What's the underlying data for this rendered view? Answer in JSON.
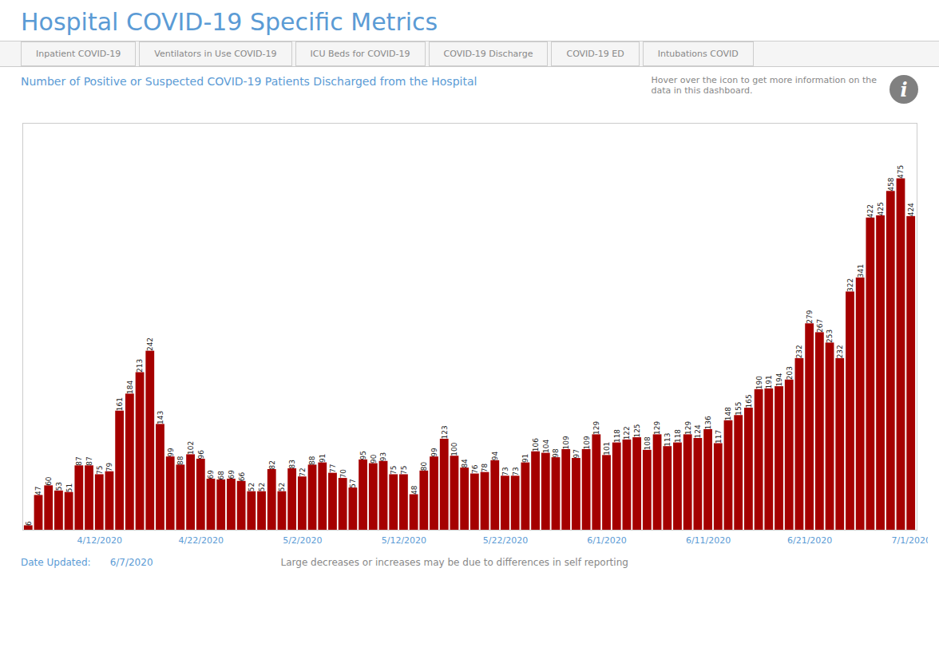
{
  "chart_data": {
    "type": "bar",
    "title": "Hospital COVID-19 Specific Metrics",
    "subtitle": "Number of Positive or Suspected COVID-19 Patients Discharged from the Hospital",
    "annotations": [
      "Inpatient COVID-19",
      "Ventilators in Use COVID-19",
      "ICU Beds for COVID-19",
      "COVID-19 Discharge",
      "COVID-19 ED",
      "Intubations COVID",
      "Hover over the icon to get more information on the\ndata in this dashboard.",
      "i",
      "Date Updated:",
      "6/7/2020",
      "Large decreases or increases may be due to differences in self reporting"
    ],
    "categories": [
      null,
      null,
      null,
      null,
      null,
      null,
      null,
      "4/12/2020",
      null,
      null,
      null,
      null,
      null,
      null,
      null,
      null,
      null,
      "4/22/2020",
      null,
      null,
      null,
      null,
      null,
      null,
      null,
      null,
      null,
      "5/2/2020",
      null,
      null,
      null,
      null,
      null,
      null,
      null,
      null,
      null,
      "5/12/2020",
      null,
      null,
      null,
      null,
      null,
      null,
      null,
      null,
      null,
      "5/22/2020",
      null,
      null,
      null,
      null,
      null,
      null,
      null,
      null,
      null,
      "6/1/2020",
      null,
      null,
      null,
      null,
      null,
      null,
      null,
      null,
      null,
      "6/11/2020",
      null,
      null,
      null,
      null,
      null,
      null,
      null,
      null,
      null,
      "6/21/2020",
      null,
      null,
      null,
      null,
      null,
      null,
      null,
      null,
      null,
      "7/1/2020"
    ],
    "values": [
      6,
      47,
      60,
      53,
      51,
      87,
      87,
      75,
      79,
      161,
      184,
      213,
      242,
      143,
      99,
      88,
      102,
      96,
      69,
      68,
      69,
      66,
      52,
      52,
      82,
      52,
      83,
      72,
      88,
      91,
      77,
      70,
      57,
      95,
      90,
      93,
      75,
      75,
      48,
      80,
      99,
      123,
      100,
      84,
      76,
      78,
      94,
      73,
      73,
      91,
      106,
      104,
      98,
      109,
      97,
      109,
      129,
      101,
      118,
      122,
      125,
      108,
      129,
      113,
      118,
      129,
      124,
      136,
      117,
      148,
      155,
      165,
      190,
      191,
      194,
      203,
      232,
      279,
      267,
      253,
      232,
      322,
      341,
      422,
      425,
      458,
      475,
      424
    ],
    "color": "#A50000",
    "ylim": [
      0,
      550
    ],
    "grid": false,
    "data_labels": true,
    "tick_labels": "x"
  }
}
